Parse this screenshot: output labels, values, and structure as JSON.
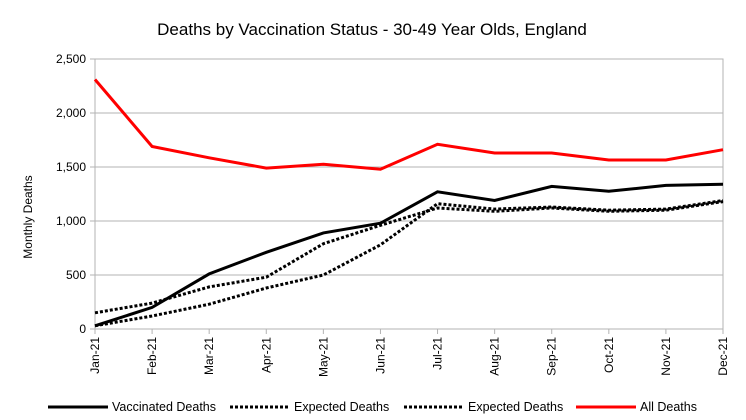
{
  "chart_data": {
    "type": "line",
    "title": "Deaths by Vaccination Status - 30-49 Year Olds, England",
    "xlabel": "",
    "ylabel": "Monthly Deaths",
    "categories": [
      "Jan-21",
      "Feb-21",
      "Mar-21",
      "Apr-21",
      "May-21",
      "Jun-21",
      "Jul-21",
      "Aug-21",
      "Sep-21",
      "Oct-21",
      "Nov-21",
      "Dec-21"
    ],
    "ylim": [
      0,
      2500
    ],
    "yticks": [
      0,
      500,
      1000,
      1500,
      2000,
      2500
    ],
    "ytick_labels": [
      "0",
      "500",
      "1,000",
      "1,500",
      "2,000",
      "2,500"
    ],
    "grid": "horizontal",
    "legend_position": "bottom",
    "series": [
      {
        "name": "Vaccinated Deaths",
        "color": "#000000",
        "style": "solid",
        "values": [
          30,
          200,
          510,
          710,
          890,
          980,
          1270,
          1190,
          1320,
          1275,
          1330,
          1340
        ]
      },
      {
        "name": "Expected Deaths",
        "color": "#000000",
        "style": "dotted",
        "values": [
          150,
          240,
          390,
          480,
          790,
          960,
          1120,
          1090,
          1120,
          1090,
          1100,
          1180
        ]
      },
      {
        "name": "Expected Deaths",
        "color": "#000000",
        "style": "dotted",
        "values": [
          30,
          120,
          230,
          380,
          500,
          780,
          1160,
          1110,
          1130,
          1100,
          1110,
          1190
        ]
      },
      {
        "name": "All Deaths",
        "color": "#ff0000",
        "style": "solid",
        "values": [
          2310,
          1690,
          1585,
          1490,
          1525,
          1480,
          1710,
          1630,
          1630,
          1565,
          1565,
          1660
        ]
      }
    ]
  }
}
